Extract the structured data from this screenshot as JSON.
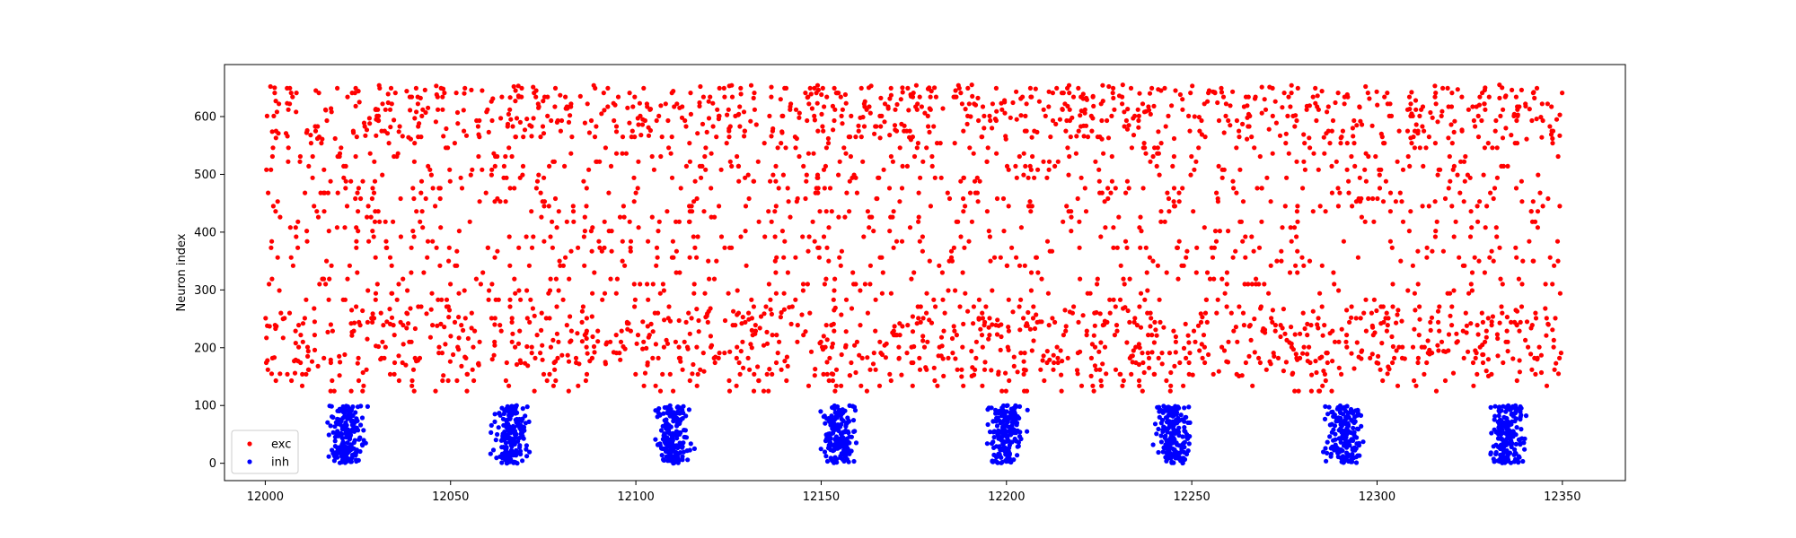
{
  "chart_data": {
    "type": "scatter",
    "title": "",
    "xlabel": "",
    "ylabel": "Neuron index",
    "xlim": [
      11983,
      11367
    ],
    "ylim": [
      -30,
      690
    ],
    "xticks": [
      12000,
      12050,
      12100,
      12150,
      12200,
      12250,
      12300,
      12350
    ],
    "yticks": [
      0,
      100,
      200,
      300,
      400,
      500,
      600
    ],
    "grid": false,
    "legend_position": "lower-left",
    "series": [
      {
        "name": "exc",
        "color": "#ff0000",
        "description_values": "excitatory spikes: neurons 125-655, times 12000-12350, ~9 spikes per ms",
        "neuron_range": [
          125,
          655
        ],
        "time_range": [
          12000,
          12350
        ],
        "count": 3000
      },
      {
        "name": "inh",
        "color": "#0000ff",
        "neuron_range": [
          0,
          100
        ],
        "burst_centers": [
          12022,
          12066,
          12110,
          12155,
          12200,
          12245,
          12291,
          12335
        ],
        "burst_half_width": 4,
        "spikes_per_burst": 180
      }
    ]
  }
}
